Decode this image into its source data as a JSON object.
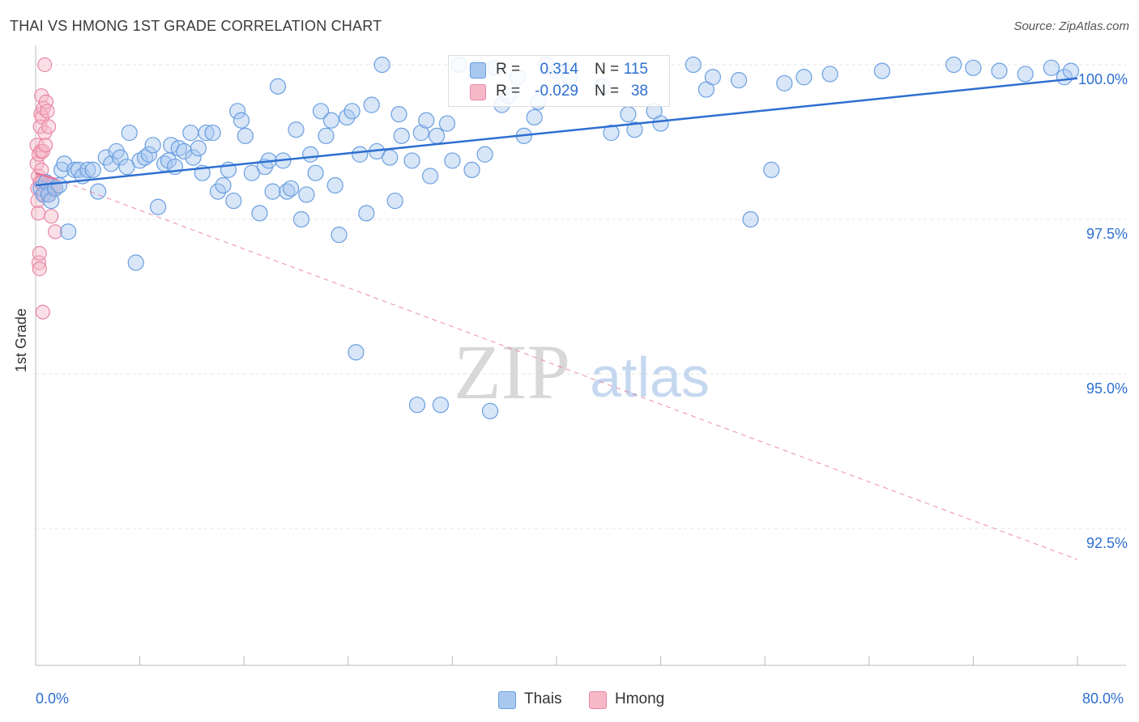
{
  "header": {
    "title": "THAI VS HMONG 1ST GRADE CORRELATION CHART",
    "source": "Source: ZipAtlas.com"
  },
  "watermark": {
    "zip": "ZIP",
    "atlas": "atlas"
  },
  "legend_top": {
    "rows": [
      {
        "r_label": "R =",
        "r_value": "0.314",
        "n_label": "N =",
        "n_value": "115",
        "color": "#a8c8f0",
        "border": "#6a9fe0"
      },
      {
        "r_label": "R =",
        "r_value": "-0.029",
        "n_label": "N =",
        "n_value": "38",
        "color": "#f7b8c8",
        "border": "#e888a8"
      }
    ]
  },
  "legend_bottom": {
    "items": [
      {
        "label": "Thais",
        "color": "#a8c8f0",
        "border": "#6a9fe0"
      },
      {
        "label": "Hmong",
        "color": "#f7b8c8",
        "border": "#e888a8"
      }
    ]
  },
  "axes": {
    "y_title": "1st Grade",
    "x_min_label": "0.0%",
    "x_max_label": "80.0%"
  },
  "chart_data": {
    "type": "scatter",
    "title": "THAI VS HMONG 1ST GRADE CORRELATION CHART",
    "xlabel": "",
    "ylabel": "1st Grade",
    "xlim": [
      0,
      80
    ],
    "ylim": [
      90.0,
      100.5
    ],
    "y_ticks": [
      {
        "value": 92.5,
        "label": "92.5%"
      },
      {
        "value": 95.0,
        "label": "95.0%"
      },
      {
        "value": 97.5,
        "label": "97.5%"
      },
      {
        "value": 100.0,
        "label": "100.0%"
      }
    ],
    "grid": true,
    "legend": "top-center",
    "colors": {
      "thais": "#2e6fd0",
      "hmong": "#e8719a",
      "tick_label": "#2e6fd0"
    },
    "series": [
      {
        "name": "Thais",
        "trend": {
          "x": [
            0,
            80
          ],
          "y": [
            98.05,
            99.78
          ],
          "style": "solid"
        },
        "points": [
          [
            0.4,
            98.0
          ],
          [
            0.6,
            97.9
          ],
          [
            0.8,
            98.1
          ],
          [
            1.0,
            97.9
          ],
          [
            1.2,
            97.8
          ],
          [
            1.5,
            98.0
          ],
          [
            1.8,
            98.05
          ],
          [
            2.0,
            98.3
          ],
          [
            2.2,
            98.4
          ],
          [
            2.5,
            97.3
          ],
          [
            3.0,
            98.3
          ],
          [
            3.3,
            98.3
          ],
          [
            3.6,
            98.2
          ],
          [
            4.0,
            98.3
          ],
          [
            4.4,
            98.3
          ],
          [
            4.8,
            97.95
          ],
          [
            5.4,
            98.5
          ],
          [
            5.8,
            98.4
          ],
          [
            6.2,
            98.6
          ],
          [
            6.5,
            98.5
          ],
          [
            7.0,
            98.35
          ],
          [
            7.2,
            98.9
          ],
          [
            7.7,
            96.8
          ],
          [
            8.0,
            98.45
          ],
          [
            8.4,
            98.5
          ],
          [
            8.7,
            98.55
          ],
          [
            9.0,
            98.7
          ],
          [
            9.4,
            97.7
          ],
          [
            9.9,
            98.4
          ],
          [
            10.2,
            98.45
          ],
          [
            10.4,
            98.7
          ],
          [
            10.7,
            98.35
          ],
          [
            11.0,
            98.65
          ],
          [
            11.4,
            98.6
          ],
          [
            11.9,
            98.9
          ],
          [
            12.1,
            98.5
          ],
          [
            12.5,
            98.65
          ],
          [
            12.8,
            98.25
          ],
          [
            13.1,
            98.9
          ],
          [
            13.6,
            98.9
          ],
          [
            14.0,
            97.95
          ],
          [
            14.4,
            98.05
          ],
          [
            14.8,
            98.3
          ],
          [
            15.2,
            97.8
          ],
          [
            15.5,
            99.25
          ],
          [
            15.8,
            99.1
          ],
          [
            16.1,
            98.85
          ],
          [
            16.6,
            98.25
          ],
          [
            17.2,
            97.6
          ],
          [
            17.6,
            98.35
          ],
          [
            17.9,
            98.45
          ],
          [
            18.2,
            97.95
          ],
          [
            18.6,
            99.65
          ],
          [
            19.0,
            98.45
          ],
          [
            19.3,
            97.95
          ],
          [
            19.6,
            98.0
          ],
          [
            20.0,
            98.95
          ],
          [
            20.4,
            97.5
          ],
          [
            20.8,
            97.9
          ],
          [
            21.1,
            98.55
          ],
          [
            21.5,
            98.25
          ],
          [
            21.9,
            99.25
          ],
          [
            22.3,
            98.85
          ],
          [
            22.7,
            99.1
          ],
          [
            23.0,
            98.05
          ],
          [
            23.3,
            97.25
          ],
          [
            23.9,
            99.15
          ],
          [
            24.3,
            99.25
          ],
          [
            24.6,
            95.35
          ],
          [
            24.9,
            98.55
          ],
          [
            25.4,
            97.6
          ],
          [
            25.8,
            99.35
          ],
          [
            26.2,
            98.6
          ],
          [
            26.6,
            100.0
          ],
          [
            27.2,
            98.5
          ],
          [
            27.6,
            97.8
          ],
          [
            27.9,
            99.2
          ],
          [
            28.1,
            98.85
          ],
          [
            28.9,
            98.45
          ],
          [
            29.3,
            94.5
          ],
          [
            29.6,
            98.9
          ],
          [
            30.0,
            99.1
          ],
          [
            30.3,
            98.2
          ],
          [
            30.8,
            98.85
          ],
          [
            31.1,
            94.5
          ],
          [
            31.6,
            99.05
          ],
          [
            32.0,
            98.45
          ],
          [
            32.5,
            100.0
          ],
          [
            33.5,
            98.3
          ],
          [
            33.9,
            99.95
          ],
          [
            34.5,
            98.55
          ],
          [
            34.9,
            94.4
          ],
          [
            35.3,
            99.95
          ],
          [
            35.8,
            99.35
          ],
          [
            36.3,
            99.5
          ],
          [
            37.0,
            99.8
          ],
          [
            37.5,
            98.85
          ],
          [
            38.3,
            99.15
          ],
          [
            38.6,
            99.4
          ],
          [
            39.2,
            100.0
          ],
          [
            40.0,
            99.9
          ],
          [
            41.0,
            99.8
          ],
          [
            43.5,
            99.65
          ],
          [
            44.2,
            98.9
          ],
          [
            45.5,
            99.2
          ],
          [
            46.0,
            98.95
          ],
          [
            47.5,
            99.25
          ],
          [
            48.0,
            99.05
          ],
          [
            50.5,
            100.0
          ],
          [
            51.5,
            99.6
          ],
          [
            52.0,
            99.8
          ],
          [
            54.0,
            99.75
          ],
          [
            54.9,
            97.5
          ],
          [
            56.5,
            98.3
          ],
          [
            57.5,
            99.7
          ],
          [
            59.0,
            99.8
          ],
          [
            61.0,
            99.85
          ],
          [
            65.0,
            99.9
          ],
          [
            70.5,
            100.0
          ],
          [
            72.0,
            99.95
          ],
          [
            74.0,
            99.9
          ],
          [
            76.0,
            99.85
          ],
          [
            78.0,
            99.95
          ],
          [
            79.0,
            99.8
          ],
          [
            79.5,
            99.9
          ]
        ]
      },
      {
        "name": "Hmong",
        "trend": {
          "x": [
            0,
            1.6
          ],
          "y": [
            98.25,
            98.15
          ],
          "style": "solid",
          "extended": {
            "x": [
              1.6,
              80
            ],
            "y": [
              98.15,
              92.0
            ],
            "style": "dashed"
          }
        },
        "points": [
          [
            0.1,
            98.7
          ],
          [
            0.1,
            98.4
          ],
          [
            0.15,
            98.0
          ],
          [
            0.15,
            97.8
          ],
          [
            0.2,
            97.6
          ],
          [
            0.2,
            98.2
          ],
          [
            0.25,
            98.55
          ],
          [
            0.25,
            96.8
          ],
          [
            0.3,
            96.7
          ],
          [
            0.3,
            96.95
          ],
          [
            0.35,
            98.1
          ],
          [
            0.35,
            99.0
          ],
          [
            0.4,
            99.2
          ],
          [
            0.4,
            98.6
          ],
          [
            0.45,
            99.5
          ],
          [
            0.45,
            98.3
          ],
          [
            0.5,
            99.15
          ],
          [
            0.5,
            98.1
          ],
          [
            0.55,
            98.6
          ],
          [
            0.55,
            96.0
          ],
          [
            0.6,
            99.3
          ],
          [
            0.6,
            98.05
          ],
          [
            0.65,
            97.9
          ],
          [
            0.7,
            100.0
          ],
          [
            0.7,
            98.9
          ],
          [
            0.75,
            98.7
          ],
          [
            0.8,
            98.0
          ],
          [
            0.8,
            99.4
          ],
          [
            0.85,
            97.95
          ],
          [
            0.9,
            99.25
          ],
          [
            0.95,
            98.05
          ],
          [
            1.0,
            97.9
          ],
          [
            1.0,
            99.0
          ],
          [
            1.1,
            98.0
          ],
          [
            1.2,
            97.55
          ],
          [
            1.3,
            98.05
          ],
          [
            1.4,
            98.0
          ],
          [
            1.5,
            97.3
          ]
        ]
      }
    ]
  }
}
